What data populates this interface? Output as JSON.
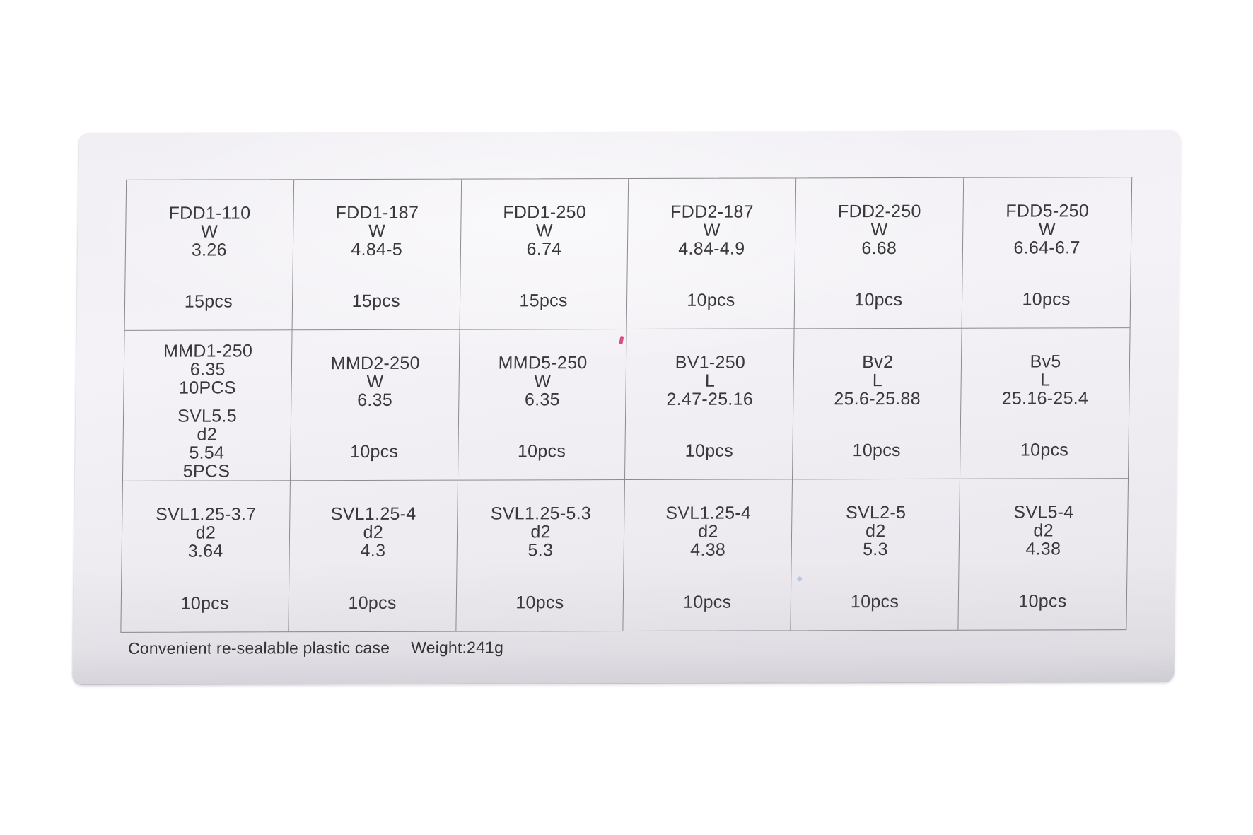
{
  "photo": {
    "background_color": "#ffffff"
  },
  "label_card": {
    "background_color": "#efedf2",
    "ink_color": "#39383b",
    "grid_line_color": "#89878c",
    "caption": {
      "text": "Convenient re-sealable plastic case",
      "weight": "Weight:241g"
    },
    "marks": [
      {
        "name": "pink-ink-speck",
        "color": "#d6326e"
      },
      {
        "name": "blue-ink-speck",
        "color": "#8fb0dc"
      }
    ],
    "table": {
      "rows": [
        {
          "cells": [
            {
              "lines": [
                "FDD1-110",
                "W",
                "3.26"
              ],
              "qty": "15pcs"
            },
            {
              "lines": [
                "FDD1-187",
                "W",
                "4.84-5"
              ],
              "qty": "15pcs"
            },
            {
              "lines": [
                "FDD1-250",
                "W",
                "6.74"
              ],
              "qty": "15pcs"
            },
            {
              "lines": [
                "FDD2-187",
                "W",
                "4.84-4.9"
              ],
              "qty": "10pcs"
            },
            {
              "lines": [
                "FDD2-250",
                "W",
                "6.68"
              ],
              "qty": "10pcs"
            },
            {
              "lines": [
                "FDD5-250",
                "W",
                "6.64-6.7"
              ],
              "qty": "10pcs"
            }
          ]
        },
        {
          "cells": [
            {
              "lines": [
                "MMD1-250",
                "6.35",
                "10PCS",
                "",
                "SVL5.5",
                "d2",
                "5.54",
                "5PCS"
              ],
              "qty": ""
            },
            {
              "lines": [
                "MMD2-250",
                "W",
                "6.35"
              ],
              "qty": "10pcs"
            },
            {
              "lines": [
                "MMD5-250",
                "W",
                "6.35"
              ],
              "qty": "10pcs"
            },
            {
              "lines": [
                "BV1-250",
                "L",
                "2.47-25.16"
              ],
              "qty": "10pcs"
            },
            {
              "lines": [
                "Bv2",
                "L",
                "25.6-25.88"
              ],
              "qty": "10pcs"
            },
            {
              "lines": [
                "Bv5",
                "L",
                "25.16-25.4"
              ],
              "qty": "10pcs"
            }
          ]
        },
        {
          "cells": [
            {
              "lines": [
                "SVL1.25-3.7",
                "d2",
                "3.64"
              ],
              "qty": "10pcs"
            },
            {
              "lines": [
                "SVL1.25-4",
                "d2",
                "4.3"
              ],
              "qty": "10pcs"
            },
            {
              "lines": [
                "SVL1.25-5.3",
                "d2",
                "5.3"
              ],
              "qty": "10pcs"
            },
            {
              "lines": [
                "SVL1.25-4",
                "d2",
                "4.38"
              ],
              "qty": "10pcs"
            },
            {
              "lines": [
                "SVL2-5",
                "d2",
                "5.3"
              ],
              "qty": "10pcs"
            },
            {
              "lines": [
                "SVL5-4",
                "d2",
                "4.38"
              ],
              "qty": "10pcs"
            }
          ]
        }
      ]
    }
  }
}
